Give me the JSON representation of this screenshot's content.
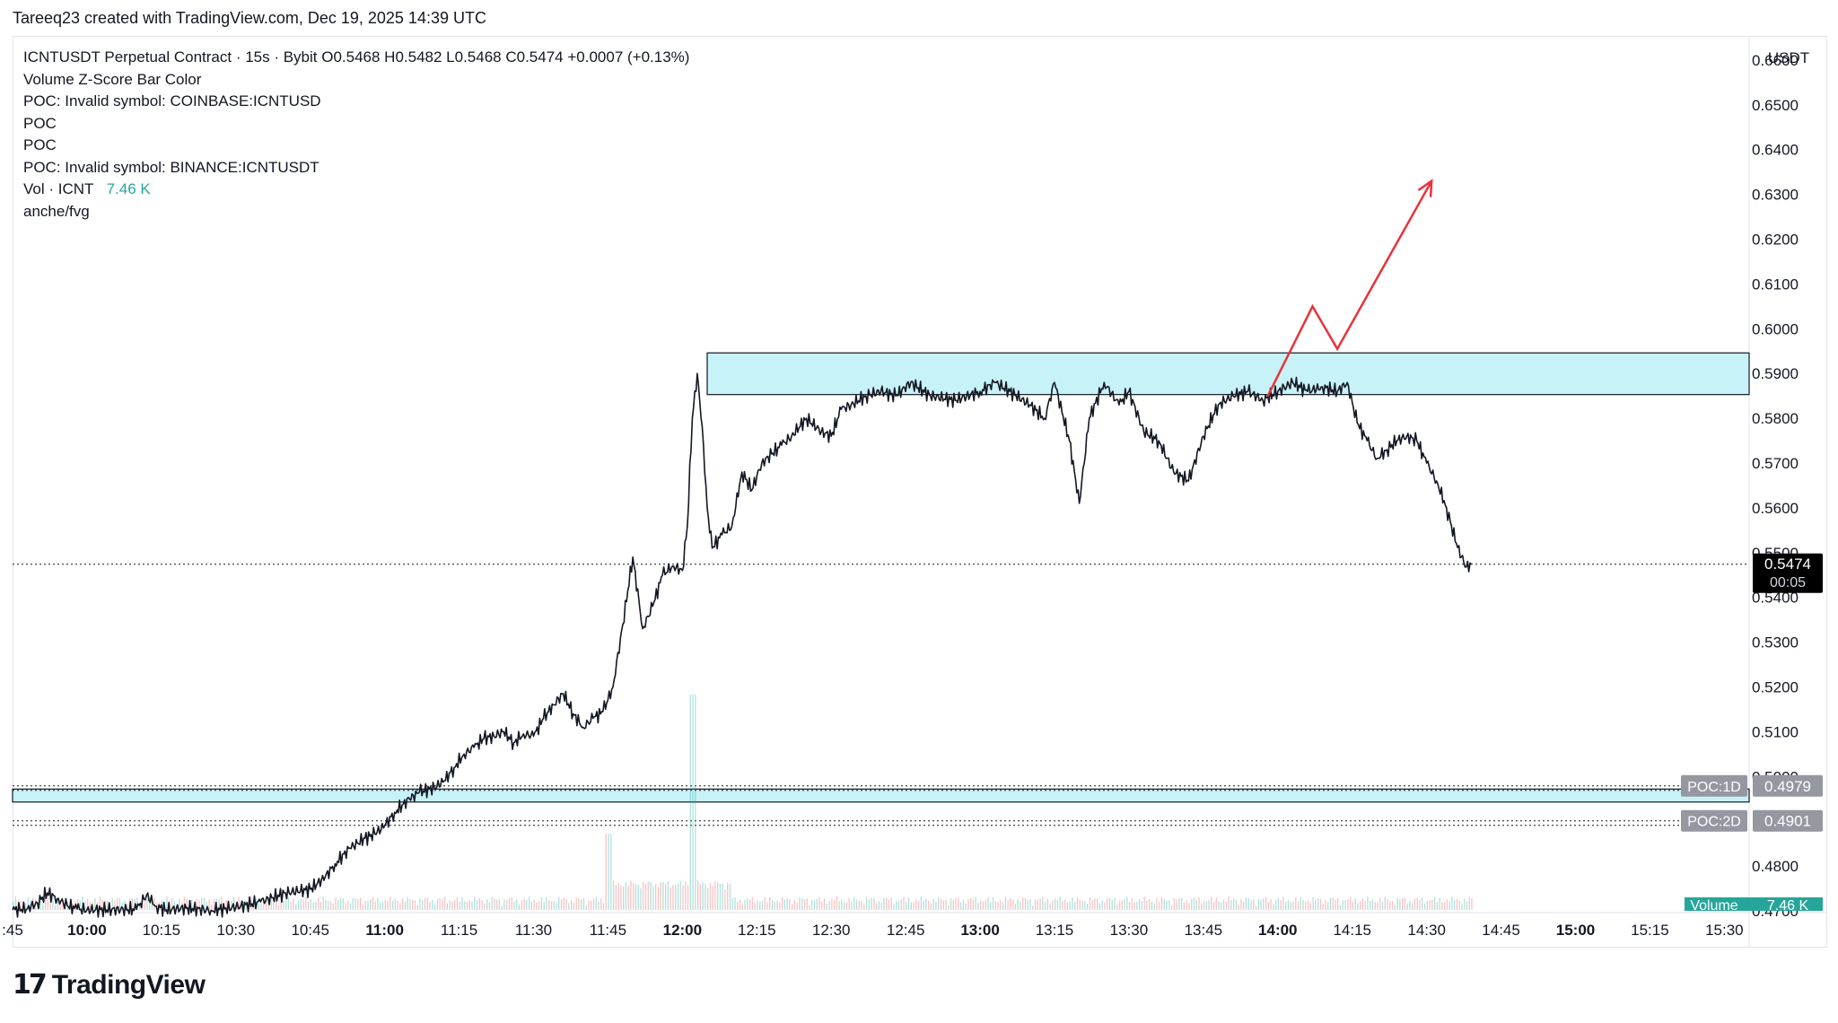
{
  "header": {
    "attribution": "Tareeq23 created with TradingView.com, Dec 19, 2025 14:39 UTC"
  },
  "legend": {
    "symbol_line": "ICNTUSDT Perpetual Contract · 15s · Bybit  O0.5468  H0.5482  L0.5468  C0.5474  +0.0007 (+0.13%)",
    "indicators": [
      "Volume Z-Score Bar Color",
      "POC: Invalid symbol: COINBASE:ICNTUSD",
      "POC",
      "POC",
      "POC: Invalid symbol: BINANCE:ICNTUSDT"
    ],
    "vol_label": "Vol · ICNT",
    "vol_value": "7.46 K",
    "last_indicator": "anche/fvg"
  },
  "brand": {
    "name": "TradingView",
    "logo_text": "17"
  },
  "colors": {
    "zone_fill": "#c7f2f8",
    "zone_border": "#131722",
    "arrow": "#e8323c",
    "price_tag_bg": "#000000",
    "poc_tag_bg": "#9598a1",
    "volume_up": "#26a69a",
    "volume_down": "#ef5350",
    "volume_tag_bg": "#26a69a"
  },
  "chart_data": {
    "type": "line",
    "title": "ICNTUSDT Perpetual Contract · 15s · Bybit",
    "currency_label": "USDT",
    "x_tick_labels": [
      ":45",
      "10:00",
      "10:15",
      "10:30",
      "10:45",
      "11:00",
      "11:15",
      "11:30",
      "11:45",
      "12:00",
      "12:15",
      "12:30",
      "12:45",
      "13:00",
      "13:15",
      "13:30",
      "13:45",
      "14:00",
      "14:15",
      "14:30",
      "14:45",
      "15:00",
      "15:15",
      "15:30"
    ],
    "x_tick_bold": [
      false,
      true,
      false,
      false,
      false,
      true,
      false,
      false,
      false,
      true,
      false,
      false,
      false,
      true,
      false,
      false,
      false,
      true,
      false,
      false,
      false,
      true,
      false,
      false
    ],
    "y_tick_labels": [
      "0.6600",
      "0.6500",
      "0.6400",
      "0.6300",
      "0.6200",
      "0.6100",
      "0.6000",
      "0.5900",
      "0.5800",
      "0.5700",
      "0.5600",
      "0.5500",
      "0.5400",
      "0.5300",
      "0.5200",
      "0.5100",
      "0.5000",
      "0.4800",
      "0.4700"
    ],
    "y_range": [
      0.47,
      0.665
    ],
    "x_range_minutes": [
      "09:45",
      "15:35"
    ],
    "series": [
      {
        "type": "line",
        "points": [
          [
            "09:45",
            0.4702
          ],
          [
            "09:48",
            0.4705
          ],
          [
            "09:50",
            0.4718
          ],
          [
            "09:52",
            0.474
          ],
          [
            "09:54",
            0.4727
          ],
          [
            "09:56",
            0.4712
          ],
          [
            "09:58",
            0.4704
          ],
          [
            "10:00",
            0.4702
          ],
          [
            "10:10",
            0.4703
          ],
          [
            "10:12",
            0.4735
          ],
          [
            "10:14",
            0.471
          ],
          [
            "10:16",
            0.4702
          ],
          [
            "10:20",
            0.4706
          ],
          [
            "10:25",
            0.4701
          ],
          [
            "10:30",
            0.4708
          ],
          [
            "10:35",
            0.472
          ],
          [
            "10:40",
            0.474
          ],
          [
            "10:45",
            0.4748
          ],
          [
            "10:48",
            0.4775
          ],
          [
            "10:50",
            0.4805
          ],
          [
            "10:53",
            0.484
          ],
          [
            "10:56",
            0.4862
          ],
          [
            "10:58",
            0.4872
          ],
          [
            "11:00",
            0.489
          ],
          [
            "11:02",
            0.492
          ],
          [
            "11:05",
            0.495
          ],
          [
            "11:07",
            0.4965
          ],
          [
            "11:10",
            0.4975
          ],
          [
            "11:12",
            0.499
          ],
          [
            "11:14",
            0.502
          ],
          [
            "11:16",
            0.505
          ],
          [
            "11:18",
            0.5065
          ],
          [
            "11:20",
            0.5085
          ],
          [
            "11:22",
            0.509
          ],
          [
            "11:24",
            0.51
          ],
          [
            "11:26",
            0.5075
          ],
          [
            "11:28",
            0.5095
          ],
          [
            "11:30",
            0.509
          ],
          [
            "11:32",
            0.513
          ],
          [
            "11:34",
            0.516
          ],
          [
            "11:36",
            0.5185
          ],
          [
            "11:38",
            0.514
          ],
          [
            "11:40",
            0.511
          ],
          [
            "11:42",
            0.513
          ],
          [
            "11:44",
            0.5145
          ],
          [
            "11:46",
            0.52
          ],
          [
            "11:48",
            0.534
          ],
          [
            "11:50",
            0.549
          ],
          [
            "11:52",
            0.533
          ],
          [
            "11:54",
            0.538
          ],
          [
            "11:56",
            0.545
          ],
          [
            "11:58",
            0.547
          ],
          [
            "12:00",
            0.546
          ],
          [
            "12:01",
            0.556
          ],
          [
            "12:02",
            0.58
          ],
          [
            "12:03",
            0.59
          ],
          [
            "12:04",
            0.578
          ],
          [
            "12:05",
            0.56
          ],
          [
            "12:06",
            0.551
          ],
          [
            "12:08",
            0.554
          ],
          [
            "12:10",
            0.556
          ],
          [
            "12:12",
            0.568
          ],
          [
            "12:14",
            0.564
          ],
          [
            "12:16",
            0.57
          ],
          [
            "12:18",
            0.572
          ],
          [
            "12:20",
            0.574
          ],
          [
            "12:22",
            0.576
          ],
          [
            "12:25",
            0.58
          ],
          [
            "12:28",
            0.577
          ],
          [
            "12:30",
            0.576
          ],
          [
            "12:32",
            0.582
          ],
          [
            "12:34",
            0.583
          ],
          [
            "12:37",
            0.585
          ],
          [
            "12:40",
            0.586
          ],
          [
            "12:43",
            0.585
          ],
          [
            "12:46",
            0.588
          ],
          [
            "12:50",
            0.585
          ],
          [
            "12:55",
            0.584
          ],
          [
            "13:00",
            0.586
          ],
          [
            "13:03",
            0.588
          ],
          [
            "13:06",
            0.586
          ],
          [
            "13:10",
            0.583
          ],
          [
            "13:13",
            0.58
          ],
          [
            "13:15",
            0.588
          ],
          [
            "13:18",
            0.575
          ],
          [
            "13:20",
            0.561
          ],
          [
            "13:22",
            0.58
          ],
          [
            "13:25",
            0.588
          ],
          [
            "13:28",
            0.583
          ],
          [
            "13:30",
            0.586
          ],
          [
            "13:33",
            0.577
          ],
          [
            "13:36",
            0.575
          ],
          [
            "13:39",
            0.568
          ],
          [
            "13:42",
            0.566
          ],
          [
            "13:45",
            0.576
          ],
          [
            "13:48",
            0.583
          ],
          [
            "13:51",
            0.585
          ],
          [
            "13:54",
            0.586
          ],
          [
            "13:57",
            0.584
          ],
          [
            "14:00",
            0.586
          ],
          [
            "14:03",
            0.588
          ],
          [
            "14:06",
            0.586
          ],
          [
            "14:09",
            0.587
          ],
          [
            "14:12",
            0.586
          ],
          [
            "14:14",
            0.588
          ],
          [
            "14:16",
            0.579
          ],
          [
            "14:18",
            0.575
          ],
          [
            "14:20",
            0.571
          ],
          [
            "14:22",
            0.573
          ],
          [
            "14:24",
            0.575
          ],
          [
            "14:26",
            0.576
          ],
          [
            "14:28",
            0.575
          ],
          [
            "14:30",
            0.57
          ],
          [
            "14:32",
            0.566
          ],
          [
            "14:34",
            0.56
          ],
          [
            "14:35",
            0.556
          ],
          [
            "14:36",
            0.552
          ],
          [
            "14:37",
            0.549
          ],
          [
            "14:38",
            0.5468
          ],
          [
            "14:39",
            0.5474
          ]
        ]
      }
    ],
    "last_price": "0.5474",
    "countdown": "00:05",
    "resistance_zone": [
      0.5853,
      0.5946
    ],
    "support_zone": [
      0.4943,
      0.4972
    ],
    "poc_lines": [
      {
        "label": "POC:1D",
        "value": "0.4979"
      },
      {
        "label": "POC:2D",
        "value": "0.4901"
      }
    ],
    "projection_arrow": [
      [
        "13:58",
        0.585
      ],
      [
        "14:07",
        0.605
      ],
      [
        "14:12",
        0.5955
      ],
      [
        "14:31",
        0.633
      ]
    ],
    "volume_label": "Volume",
    "volume_value": "7.46 K",
    "grid": false
  }
}
